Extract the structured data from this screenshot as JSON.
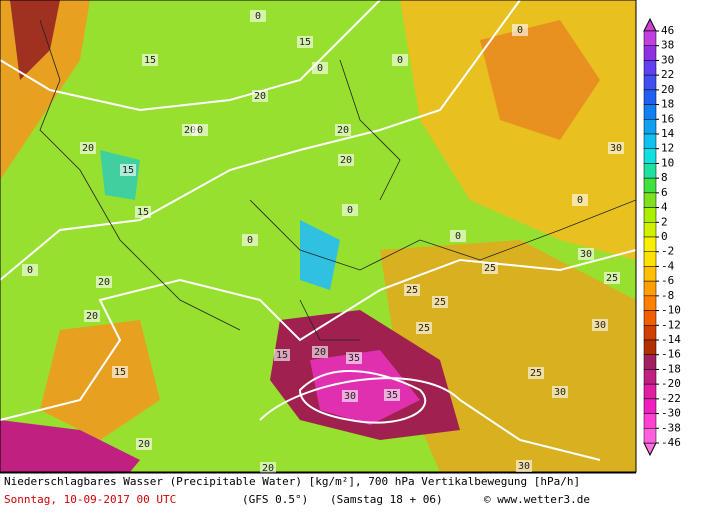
{
  "map": {
    "contour_labels": [
      "15",
      "15",
      "15",
      "20",
      "20",
      "20",
      "20",
      "20",
      "15",
      "20",
      "20",
      "25",
      "25",
      "25",
      "30",
      "30",
      "30",
      "35",
      "35",
      "30",
      "20",
      "25",
      "30",
      "25",
      "20",
      "15",
      "15",
      "20",
      "30",
      "25",
      "0",
      "0",
      "0",
      "0",
      "0",
      "0",
      "0",
      "0",
      "0",
      "0"
    ]
  },
  "colorbar": {
    "levels": [
      46,
      38,
      30,
      22,
      20,
      18,
      16,
      14,
      12,
      10,
      8,
      6,
      4,
      2,
      0,
      -2,
      -4,
      -6,
      -8,
      -10,
      -12,
      -14,
      -16,
      -18,
      -20,
      -22,
      -30,
      -38,
      -46
    ],
    "colors": [
      "#c040e0",
      "#9030e0",
      "#6040f0",
      "#4050f0",
      "#2060f0",
      "#1080f0",
      "#10a0f0",
      "#10c0f0",
      "#10e0e0",
      "#20e0a0",
      "#40e040",
      "#80e020",
      "#a8f000",
      "#d0f000",
      "#f8f000",
      "#ffe000",
      "#ffc000",
      "#ffa000",
      "#ff8000",
      "#f06000",
      "#d04000",
      "#b03000",
      "#a02060",
      "#c02080",
      "#e020a0",
      "#f020c0",
      "#ff40d0",
      "#ff60e0"
    ]
  },
  "footer": {
    "description": "Niederschlagbares Wasser (Precipitable Water) [kg/m²], 700 hPa Vertikalbewegung [hPa/h]",
    "date": "Sonntag, 10-09-2017  00 UTC",
    "model": "(GFS 0.5°)",
    "run": "(Samstag 18 + 06)",
    "credit": "© www.wetter3.de"
  }
}
